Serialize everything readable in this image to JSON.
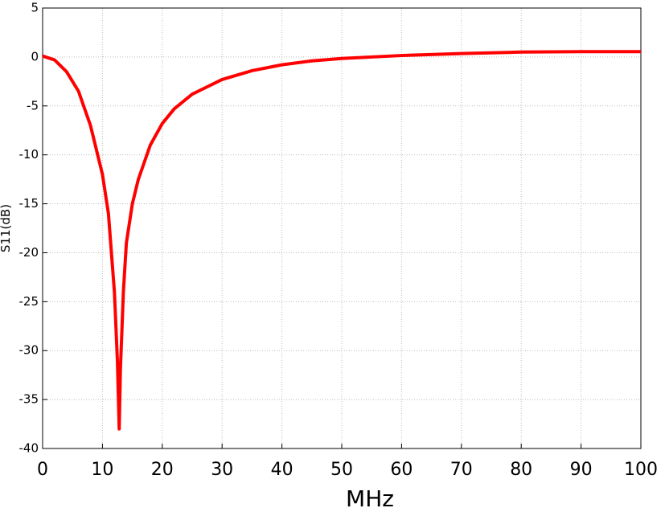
{
  "chart_data": {
    "type": "line",
    "x_label": "MHz",
    "y_label": "S11(dB)",
    "x": [
      0,
      2,
      4,
      6,
      8,
      10,
      11,
      12,
      12.5,
      12.8,
      13,
      13.5,
      14,
      15,
      16,
      18,
      20,
      22,
      25,
      30,
      35,
      40,
      45,
      50,
      60,
      70,
      80,
      90,
      100
    ],
    "series": [
      {
        "name": "S11",
        "color": "#ff0000",
        "values": [
          0.1,
          -0.3,
          -1.5,
          -3.5,
          -7,
          -12,
          -16,
          -24,
          -31,
          -38,
          -32,
          -24,
          -19,
          -15,
          -12.5,
          -9,
          -6.8,
          -5.3,
          -3.8,
          -2.3,
          -1.4,
          -0.8,
          -0.4,
          -0.15,
          0.15,
          0.35,
          0.5,
          0.55,
          0.55
        ]
      }
    ],
    "xlim": [
      0,
      100
    ],
    "xticks": [
      0,
      10,
      20,
      30,
      40,
      50,
      60,
      70,
      80,
      90,
      100
    ],
    "ylim": [
      -40,
      5
    ],
    "yticks": [
      5,
      0,
      -5,
      -10,
      -15,
      -20,
      -25,
      -30,
      -35,
      -40
    ],
    "grid": true
  }
}
